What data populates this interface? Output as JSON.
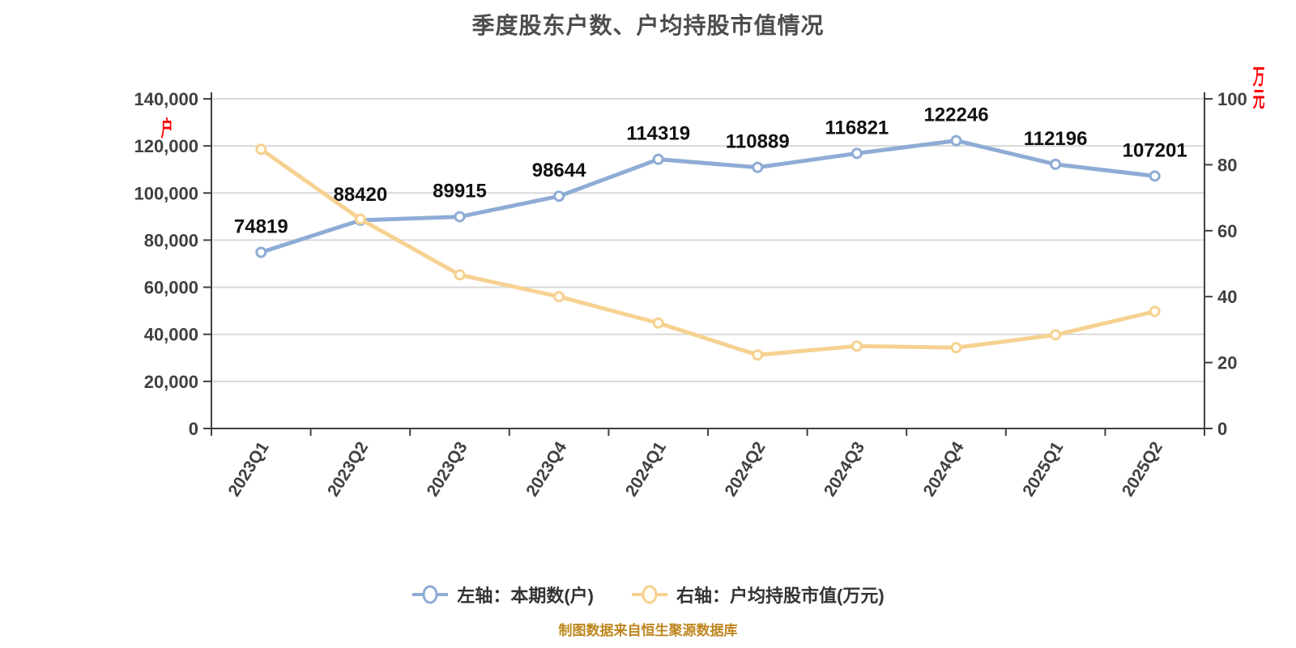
{
  "title": "季度股东户数、户均持股市值情况",
  "footer": {
    "text": "制图数据来自恒生聚源数据库",
    "color": "#BE861E"
  },
  "chart_data": {
    "type": "line",
    "title": "季度股东户数、户均持股市值情况",
    "categories": [
      "2023Q1",
      "2023Q2",
      "2023Q3",
      "2023Q4",
      "2024Q1",
      "2024Q2",
      "2024Q3",
      "2024Q4",
      "2025Q1",
      "2025Q2"
    ],
    "series": [
      {
        "name": "左轴：本期数(户)",
        "axis": "left",
        "color": "#8EACD5",
        "marker_fill": "#FFFFFF",
        "values": [
          74819,
          88420,
          89915,
          98644,
          114319,
          110889,
          116821,
          122246,
          112196,
          107201
        ],
        "data_labels": true
      },
      {
        "name": "右轴：户均持股市值(万元)",
        "axis": "right",
        "color": "#F6D191",
        "marker_fill": "#FFFDF4",
        "values": [
          84.7,
          63.5,
          46.6,
          40.0,
          32.0,
          22.3,
          25.0,
          24.5,
          28.4,
          35.5
        ],
        "data_labels": false
      }
    ],
    "left_axis": {
      "min": 0,
      "max": 140000,
      "step": 20000,
      "unit": "户",
      "unit_color": "#FF0000"
    },
    "right_axis": {
      "min": 0,
      "max": 100,
      "step": 20,
      "unit": "万元",
      "unit_color": "#FF0000"
    },
    "grid": true,
    "legend_position": "bottom",
    "style": {
      "grid_color": "#D9D9D9",
      "axis_color": "#404040",
      "tick_label_color": "#404040",
      "data_label_color": "#111111",
      "title_color": "#4D4D4D"
    }
  }
}
